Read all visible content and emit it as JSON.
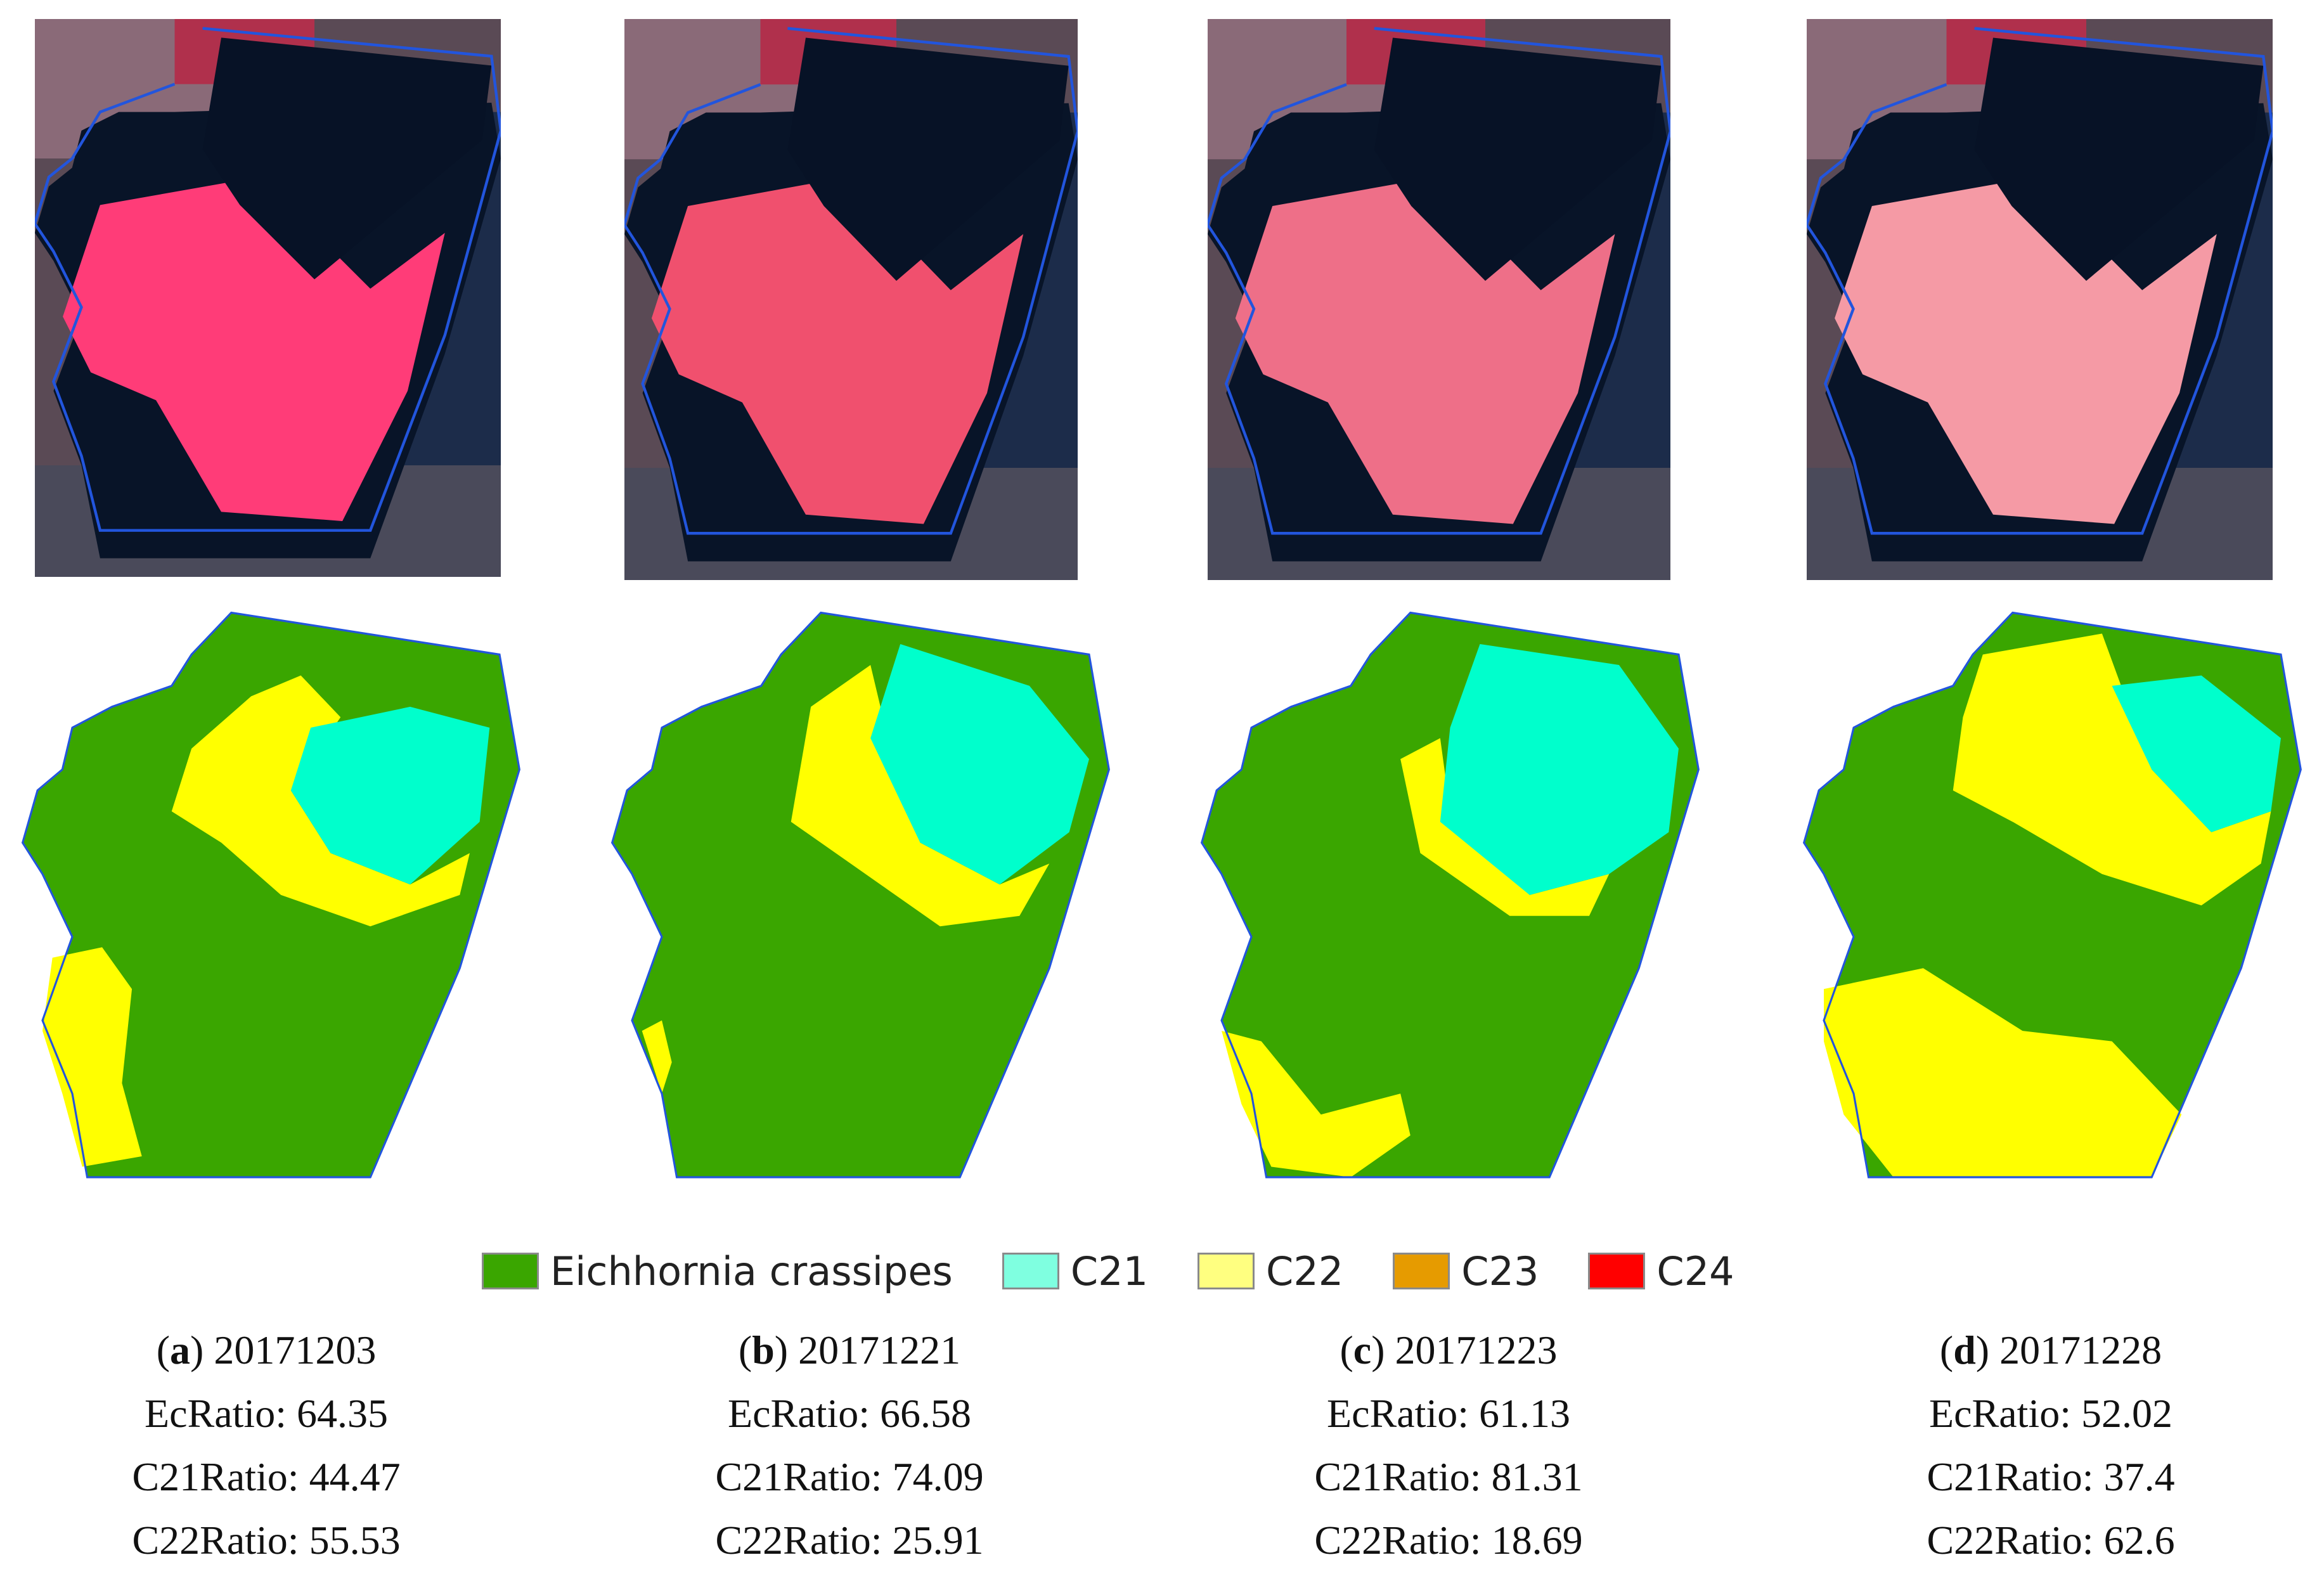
{
  "legend": [
    {
      "label": "Eichhornia crassipes",
      "color": "#3aa600"
    },
    {
      "label": "C21",
      "color": "#7fffe0"
    },
    {
      "label": "C22",
      "color": "#ffff80"
    },
    {
      "label": "C23",
      "color": "#e69b00"
    },
    {
      "label": "C24",
      "color": "#ff0000"
    }
  ],
  "class_colors": {
    "ec": "#3aa600",
    "c21": "#00ffcc",
    "c22": "#ffff00",
    "boundary": "#2255dd"
  },
  "panels": [
    {
      "letter": "a",
      "date": "20171203",
      "ec_label": "EcRatio: 64.35",
      "c21_label": "C21Ratio: 44.47",
      "c22_label": "C22Ratio: 55.53",
      "ec_ratio": 64.35,
      "c21_ratio": 44.47,
      "c22_ratio": 55.53
    },
    {
      "letter": "b",
      "date": "20171221",
      "ec_label": "EcRatio: 66.58",
      "c21_label": "C21Ratio: 74.09",
      "c22_label": "C22Ratio: 25.91",
      "ec_ratio": 66.58,
      "c21_ratio": 74.09,
      "c22_ratio": 25.91
    },
    {
      "letter": "c",
      "date": "20171223",
      "ec_label": "EcRatio: 61.13",
      "c21_label": "C21Ratio: 81.31",
      "c22_label": "C22Ratio: 18.69",
      "ec_ratio": 61.13,
      "c21_ratio": 81.31,
      "c22_ratio": 18.69
    },
    {
      "letter": "d",
      "date": "20171228",
      "ec_label": "EcRatio: 52.02",
      "c21_label": "C21Ratio: 37.4",
      "c22_label": "C22Ratio: 62.6",
      "ec_ratio": 52.02,
      "c21_ratio": 37.4,
      "c22_ratio": 62.6
    }
  ]
}
